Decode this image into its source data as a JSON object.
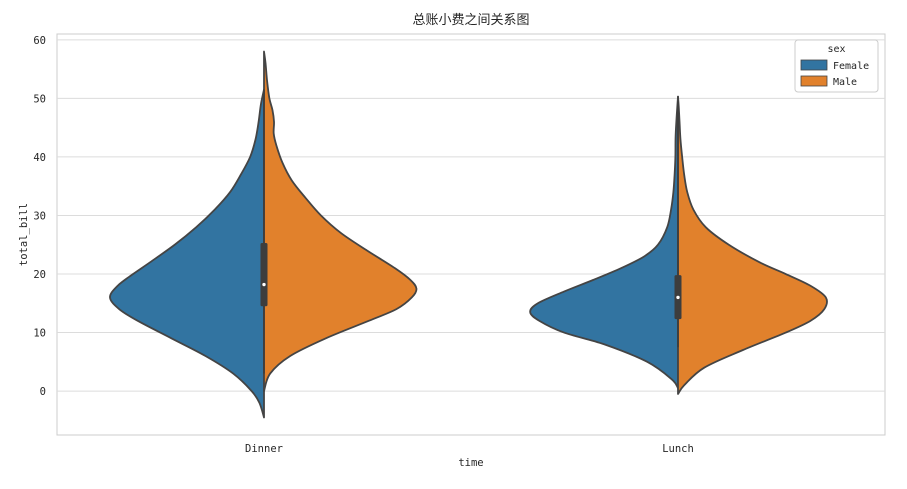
{
  "chart_data": {
    "type": "violin",
    "title": "总账小费之间关系图",
    "xlabel": "time",
    "ylabel": "total_bill",
    "ylim": [
      -7.5,
      61
    ],
    "yticks": [
      0,
      10,
      20,
      30,
      40,
      50,
      60
    ],
    "grid": true,
    "split": true,
    "categories": [
      "Dinner",
      "Lunch"
    ],
    "legend": {
      "title": "sex",
      "position": "top-right",
      "entries": [
        "Female",
        "Male"
      ]
    },
    "series": [
      {
        "name": "Female",
        "color": "#3274a1",
        "side": "left",
        "groups": [
          {
            "category": "Dinner",
            "density": [
              [
                -4.5,
                0.0
              ],
              [
                -2,
                0.03
              ],
              [
                0,
                0.08
              ],
              [
                3,
                0.2
              ],
              [
                6,
                0.38
              ],
              [
                9,
                0.6
              ],
              [
                12,
                0.82
              ],
              [
                14,
                0.94
              ],
              [
                16,
                1.0
              ],
              [
                18,
                0.95
              ],
              [
                20,
                0.85
              ],
              [
                22,
                0.74
              ],
              [
                25,
                0.58
              ],
              [
                28,
                0.44
              ],
              [
                31,
                0.32
              ],
              [
                34,
                0.22
              ],
              [
                37,
                0.15
              ],
              [
                40,
                0.09
              ],
              [
                43,
                0.055
              ],
              [
                46,
                0.035
              ],
              [
                49,
                0.02
              ],
              [
                51.5,
                0.0
              ]
            ]
          },
          {
            "category": "Lunch",
            "density": [
              [
                0.5,
                0.0
              ],
              [
                2,
                0.04
              ],
              [
                5,
                0.2
              ],
              [
                8,
                0.48
              ],
              [
                10,
                0.74
              ],
              [
                12,
                0.9
              ],
              [
                13.5,
                0.96
              ],
              [
                15,
                0.91
              ],
              [
                17,
                0.74
              ],
              [
                19,
                0.55
              ],
              [
                21,
                0.37
              ],
              [
                23,
                0.22
              ],
              [
                25,
                0.13
              ],
              [
                28,
                0.07
              ],
              [
                31,
                0.045
              ],
              [
                34,
                0.03
              ],
              [
                37,
                0.022
              ],
              [
                40,
                0.017
              ],
              [
                43,
                0.016
              ],
              [
                45,
                0.013
              ],
              [
                48,
                0.006
              ],
              [
                50.3,
                0.0
              ]
            ]
          }
        ]
      },
      {
        "name": "Male",
        "color": "#e1812c",
        "side": "right",
        "groups": [
          {
            "category": "Dinner",
            "density": [
              [
                0,
                0.0
              ],
              [
                3,
                0.04
              ],
              [
                6,
                0.17
              ],
              [
                9,
                0.4
              ],
              [
                12,
                0.68
              ],
              [
                14,
                0.86
              ],
              [
                16,
                0.96
              ],
              [
                17.5,
                0.99
              ],
              [
                19,
                0.95
              ],
              [
                21,
                0.85
              ],
              [
                24,
                0.67
              ],
              [
                27,
                0.5
              ],
              [
                30,
                0.37
              ],
              [
                33,
                0.27
              ],
              [
                36,
                0.18
              ],
              [
                39,
                0.12
              ],
              [
                42,
                0.08
              ],
              [
                44,
                0.063
              ],
              [
                46,
                0.065
              ],
              [
                48,
                0.055
              ],
              [
                50,
                0.035
              ],
              [
                53,
                0.02
              ],
              [
                56,
                0.01
              ],
              [
                58,
                0.0
              ]
            ]
          },
          {
            "category": "Lunch",
            "density": [
              [
                -0.5,
                0.0
              ],
              [
                1,
                0.04
              ],
              [
                4,
                0.17
              ],
              [
                7,
                0.42
              ],
              [
                10,
                0.7
              ],
              [
                12,
                0.86
              ],
              [
                14,
                0.95
              ],
              [
                16,
                0.96
              ],
              [
                18,
                0.86
              ],
              [
                20,
                0.7
              ],
              [
                22,
                0.53
              ],
              [
                25,
                0.33
              ],
              [
                28,
                0.18
              ],
              [
                31,
                0.1
              ],
              [
                34,
                0.06
              ],
              [
                37,
                0.04
              ],
              [
                40,
                0.027
              ],
              [
                43,
                0.016
              ],
              [
                46,
                0.01
              ],
              [
                48.5,
                0.005
              ],
              [
                50.3,
                0.0
              ]
            ]
          }
        ]
      }
    ],
    "inner_box": [
      {
        "category": "Dinner",
        "median": 18.2,
        "q1": 14.5,
        "q3": 25.3,
        "whisker_low": 3.0,
        "whisker_high": 51.5
      },
      {
        "category": "Lunch",
        "median": 16.0,
        "q1": 12.3,
        "q3": 19.8,
        "whisker_low": 7.5,
        "whisker_high": 49.5
      }
    ]
  }
}
